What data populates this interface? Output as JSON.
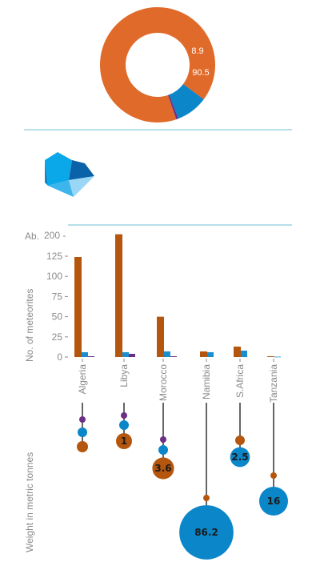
{
  "colors": {
    "orange": "#e06a2a",
    "bar_orange": "#b5560f",
    "blue": "#0a86c9",
    "bar_blue": "#1a8fd0",
    "purple": "#6b2f86",
    "divider": "#6fbfd0",
    "axis_text": "#8a8a8a",
    "stem": "#333333"
  },
  "donut": {
    "labels": [
      "8.9",
      "90.5"
    ]
  },
  "y_axis": {
    "title": "No. of meteorites",
    "prefix": "Ab."
  },
  "weight_axis": {
    "title": "Weight in metric tonnes"
  },
  "chart_data": [
    {
      "type": "pie",
      "donut": true,
      "slices": [
        {
          "value": 90.5,
          "label": "90.5",
          "color": "#e06a2a"
        },
        {
          "value": 8.9,
          "label": "8.9",
          "color": "#0a86c9"
        },
        {
          "value": 0.6,
          "label": "",
          "color": "#6b2f86"
        }
      ]
    },
    {
      "type": "bar",
      "categories": [
        "Algeria",
        "Libya",
        "Morocco",
        "Namibia",
        "S.Africa",
        "Tanzania"
      ],
      "series": [
        {
          "color": "#b5560f",
          "values": [
            124,
            204,
            50,
            7,
            13,
            1
          ]
        },
        {
          "color": "#1a8fd0",
          "values": [
            6,
            6,
            7,
            6,
            8,
            0.5
          ]
        },
        {
          "color": "#6b2f86",
          "values": [
            1,
            4,
            1,
            0,
            0,
            0
          ]
        }
      ],
      "ylim": [
        0,
        200
      ],
      "yticks": [
        0,
        25,
        50,
        75,
        100,
        125,
        200
      ],
      "ylabel": "No. of meteorites"
    },
    {
      "type": "scatter",
      "categories": [
        "Algeria",
        "Libya",
        "Morocco",
        "Namibia",
        "S.Africa",
        "Tanzania"
      ],
      "ylabel": "Weight in metric tonnes",
      "stems": [
        {
          "category": "Algeria",
          "points": [
            {
              "color": "#6b2f86",
              "value": 0.1,
              "label": ""
            },
            {
              "color": "#0a86c9",
              "value": 0.3,
              "label": ""
            },
            {
              "color": "#b5560f",
              "value": 0.5,
              "label": ""
            }
          ]
        },
        {
          "category": "Libya",
          "points": [
            {
              "color": "#6b2f86",
              "value": 0.1,
              "label": ""
            },
            {
              "color": "#0a86c9",
              "value": 0.3,
              "label": ""
            },
            {
              "color": "#b5560f",
              "value": 1,
              "label": "1"
            }
          ]
        },
        {
          "category": "Morocco",
          "points": [
            {
              "color": "#6b2f86",
              "value": 0.1,
              "label": ""
            },
            {
              "color": "#0a86c9",
              "value": 0.3,
              "label": ""
            },
            {
              "color": "#b5560f",
              "value": 3.6,
              "label": "3.6"
            }
          ]
        },
        {
          "category": "Namibia",
          "points": [
            {
              "color": "#b5560f",
              "value": 0.1,
              "label": ""
            },
            {
              "color": "#0a86c9",
              "value": 86.2,
              "label": "86.2"
            }
          ]
        },
        {
          "category": "S.Africa",
          "points": [
            {
              "color": "#b5560f",
              "value": 0.3,
              "label": ""
            },
            {
              "color": "#0a86c9",
              "value": 2.5,
              "label": "2.5"
            }
          ]
        },
        {
          "category": "Tanzania",
          "points": [
            {
              "color": "#b5560f",
              "value": 0.1,
              "label": ""
            },
            {
              "color": "#0a86c9",
              "value": 16,
              "label": "16"
            }
          ]
        }
      ]
    }
  ]
}
